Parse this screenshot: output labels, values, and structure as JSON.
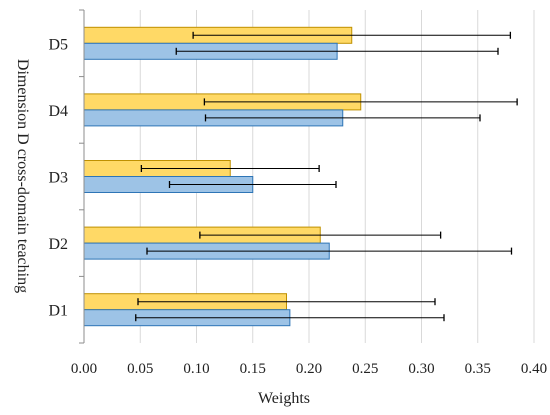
{
  "chart_data": {
    "type": "bar",
    "orientation": "horizontal",
    "categories": [
      "D1",
      "D2",
      "D3",
      "D4",
      "D5"
    ],
    "series": [
      {
        "color": "#FFD966",
        "edge_color": "#BF9000",
        "values": [
          0.18,
          0.21,
          0.13,
          0.246,
          0.238
        ],
        "error": [
          0.132,
          0.107,
          0.079,
          0.139,
          0.141
        ]
      },
      {
        "color": "#9DC3E6",
        "edge_color": "#2E75B6",
        "values": [
          0.183,
          0.218,
          0.15,
          0.23,
          0.225
        ],
        "error": [
          0.137,
          0.162,
          0.074,
          0.122,
          0.143
        ]
      }
    ],
    "x_ticks": [
      "0.00",
      "0.05",
      "0.10",
      "0.15",
      "0.20",
      "0.25",
      "0.30",
      "0.35",
      "0.40"
    ],
    "xlim": [
      0,
      0.4
    ],
    "xlabel": "Weights",
    "ylabel": "Dimension D cross-domain teaching",
    "grid": "vertical",
    "legend": "none"
  }
}
